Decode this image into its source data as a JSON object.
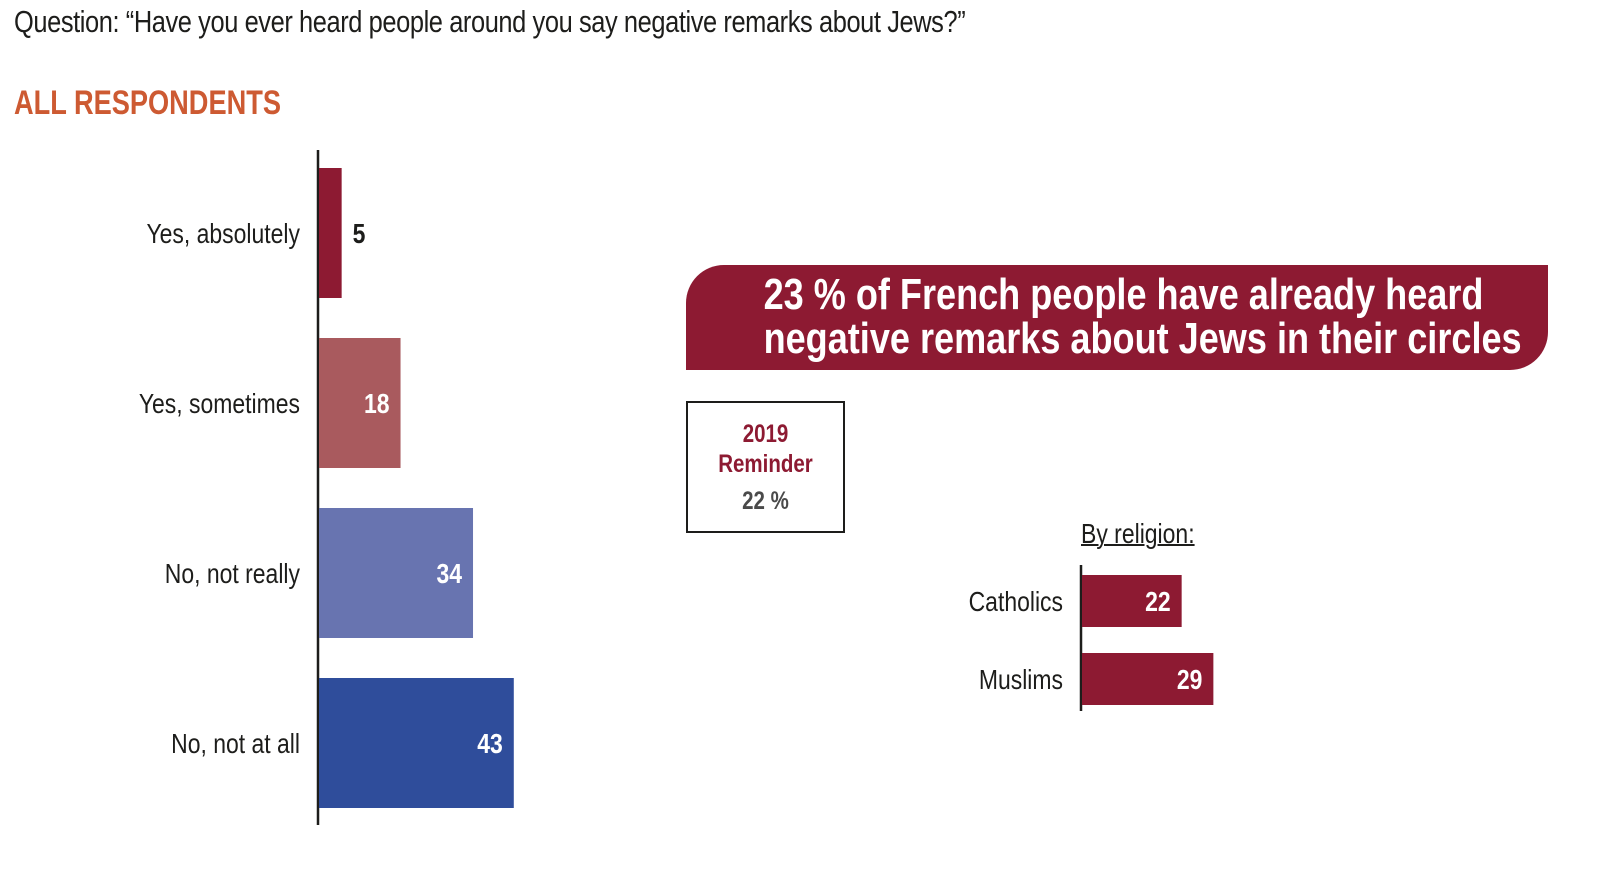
{
  "question": "Question: “Have you ever heard people around you say negative remarks about Jews?”",
  "section_title": "ALL RESPONDENTS",
  "callout": {
    "line1": "23 % of French people have already heard",
    "line2": "negative remarks about Jews in their circles"
  },
  "reminder": {
    "year": "2019",
    "label": "Reminder",
    "value": "22 %"
  },
  "religion_title": "By religion:",
  "colors": {
    "title_orange": "#cd5a32",
    "dark_red": "#8d1a32",
    "light_red": "#a95a5e",
    "light_blue": "#6874b0",
    "dark_blue": "#2f4d9b"
  },
  "chart_data": [
    {
      "type": "bar",
      "orientation": "horizontal",
      "title": "ALL RESPONDENTS",
      "categories": [
        "Yes, absolutely",
        "Yes, sometimes",
        "No, not really",
        "No, not at all"
      ],
      "values": [
        5,
        18,
        34,
        43
      ],
      "value_labels": [
        "5",
        "18",
        "34",
        "43"
      ],
      "colors": [
        "#8d1a32",
        "#a95a5e",
        "#6874b0",
        "#2f4d9b"
      ],
      "xlim": [
        0,
        43
      ],
      "unit": "%",
      "grid": false
    },
    {
      "type": "bar",
      "orientation": "horizontal",
      "title": "By religion:",
      "categories": [
        "Catholics",
        "Muslims"
      ],
      "values": [
        22,
        29
      ],
      "value_labels": [
        "22",
        "29"
      ],
      "colors": [
        "#8d1a32",
        "#8d1a32"
      ],
      "unit": "%",
      "grid": false
    }
  ]
}
